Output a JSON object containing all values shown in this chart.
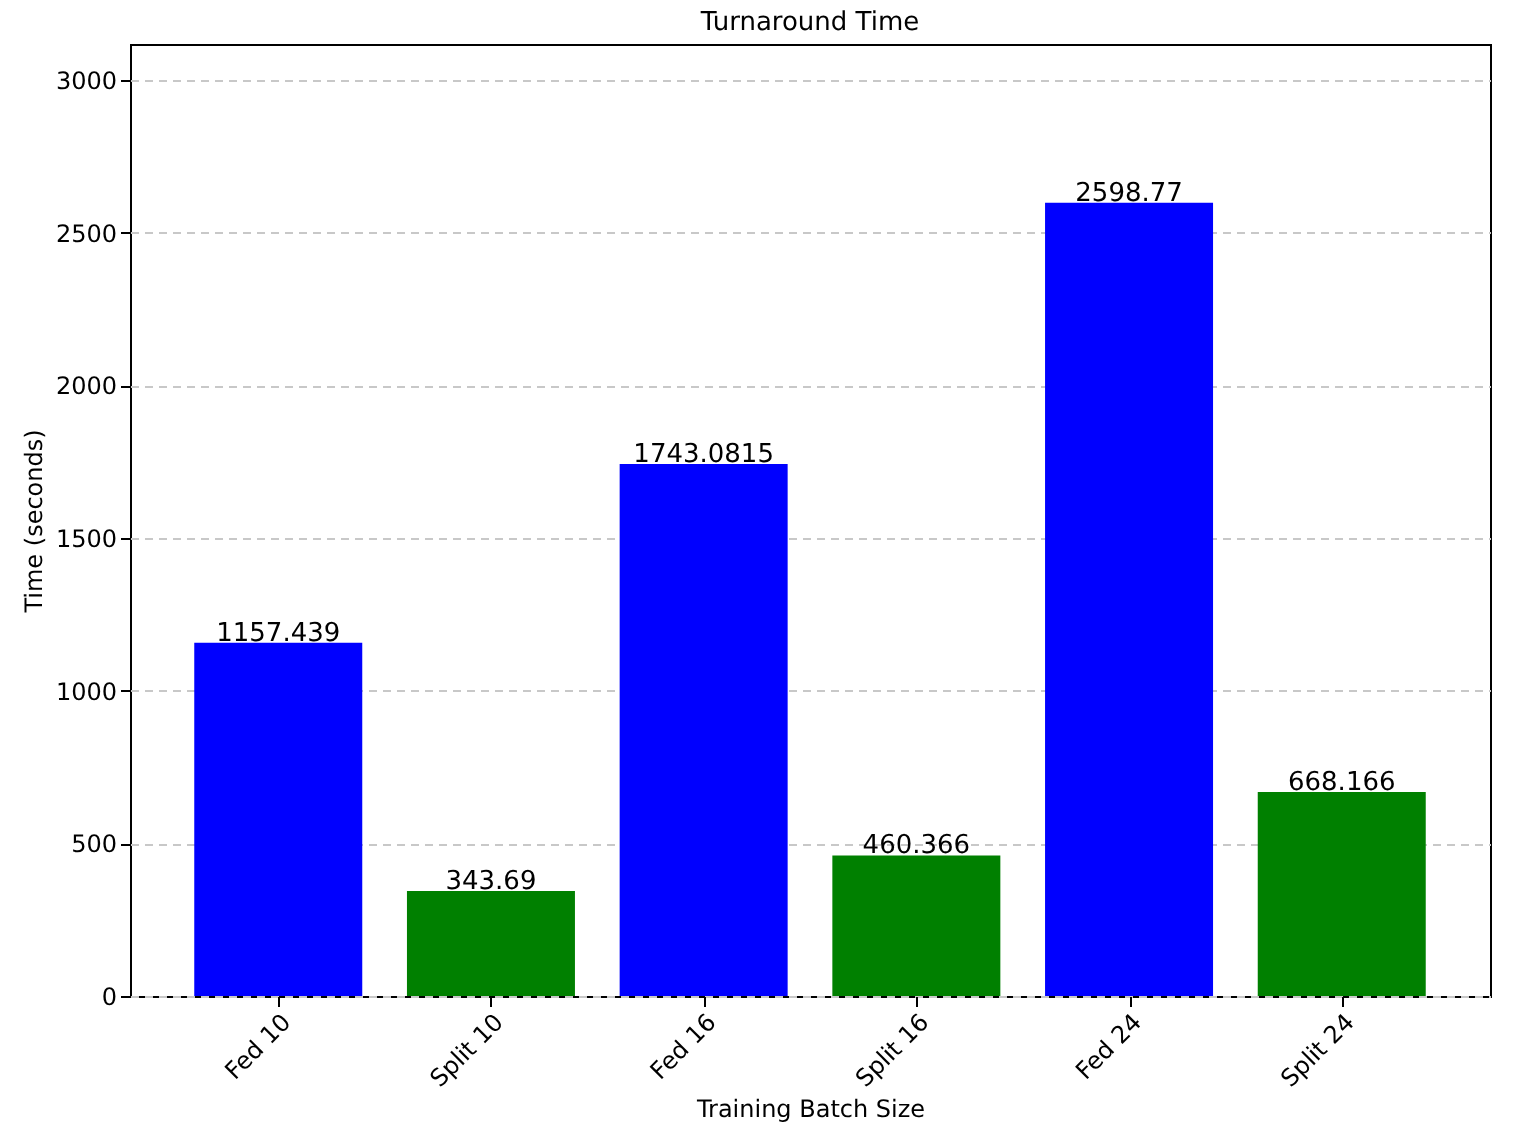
{
  "chart_data": {
    "type": "bar",
    "title": "Turnaround Time",
    "xlabel": "Training Batch Size",
    "ylabel": "Time (seconds)",
    "categories": [
      "Fed 10",
      "Split 10",
      "Fed 16",
      "Split 16",
      "Fed 24",
      "Split 24"
    ],
    "values": [
      1157.439,
      343.69,
      1743.0815,
      460.366,
      2598.77,
      668.166
    ],
    "colors": [
      "#0000ff",
      "#008000",
      "#0000ff",
      "#008000",
      "#0000ff",
      "#008000"
    ],
    "ylim": [
      0,
      3118.5
    ],
    "yticks": [
      0,
      500,
      1000,
      1500,
      2000,
      2500,
      3000
    ],
    "grid": "y",
    "line_style": "dashed",
    "data_labels": true
  }
}
